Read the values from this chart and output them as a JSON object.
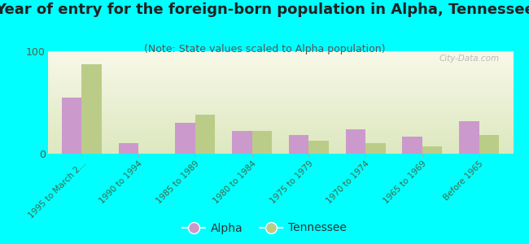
{
  "title": "Year of entry for the foreign-born population in Alpha, Tennessee",
  "subtitle": "(Note: State values scaled to Alpha population)",
  "categories": [
    "1995 to March 2...",
    "1990 to 1994",
    "1985 to 1989",
    "1980 to 1984",
    "1975 to 1979",
    "1970 to 1974",
    "1965 to 1969",
    "Before 1965"
  ],
  "alpha_values": [
    55,
    10,
    30,
    22,
    18,
    24,
    17,
    32
  ],
  "tennessee_values": [
    87,
    0,
    38,
    22,
    13,
    10,
    7,
    18
  ],
  "alpha_color": "#cc99cc",
  "tennessee_color": "#bbcc88",
  "background_color": "#f5f5e0",
  "bg_outer": "#00ffff",
  "ylim": [
    0,
    100
  ],
  "yticks": [
    0,
    100
  ],
  "title_fontsize": 13,
  "subtitle_fontsize": 9,
  "watermark": "City-Data.com"
}
